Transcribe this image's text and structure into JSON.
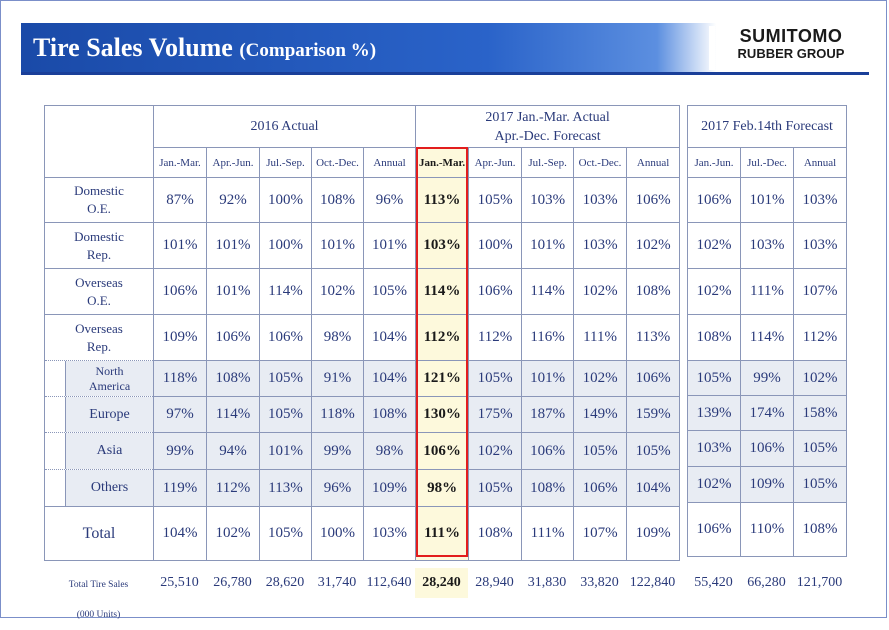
{
  "title": "Tire Sales Volume",
  "subtitle": "(Comparison %)",
  "logo": {
    "line1": "SUMITOMO",
    "line2": "RUBBER GROUP"
  },
  "groups": {
    "g2016": "2016 Actual",
    "g2017a_l1": "2017 Jan.-Mar. Actual",
    "g2017a_l2": "Apr.-Dec. Forecast",
    "g2017f": "2017 Feb.14th Forecast"
  },
  "periods_main": [
    "Jan.-Mar.",
    "Apr.-Jun.",
    "Jul.-Sep.",
    "Oct.-Dec.",
    "Annual",
    "Jan.-Mar.",
    "Apr.-Jun.",
    "Jul.-Sep.",
    "Oct.-Dec.",
    "Annual"
  ],
  "periods_fc": [
    "Jan.-Jun.",
    "Jul.-Dec.",
    "Annual"
  ],
  "rows": [
    {
      "l1": "Domestic",
      "l2": "O.E.",
      "main": [
        "87%",
        "92%",
        "100%",
        "108%",
        "96%",
        "113%",
        "105%",
        "103%",
        "103%",
        "106%"
      ],
      "fc": [
        "106%",
        "101%",
        "103%"
      ]
    },
    {
      "l1": "Domestic",
      "l2": "Rep.",
      "main": [
        "101%",
        "101%",
        "100%",
        "101%",
        "101%",
        "103%",
        "100%",
        "101%",
        "103%",
        "102%"
      ],
      "fc": [
        "102%",
        "103%",
        "103%"
      ]
    },
    {
      "l1": "Overseas",
      "l2": "O.E.",
      "main": [
        "106%",
        "101%",
        "114%",
        "102%",
        "105%",
        "114%",
        "106%",
        "114%",
        "102%",
        "108%"
      ],
      "fc": [
        "102%",
        "111%",
        "107%"
      ]
    },
    {
      "l1": "Overseas",
      "l2": "Rep.",
      "main": [
        "109%",
        "106%",
        "106%",
        "98%",
        "104%",
        "112%",
        "112%",
        "116%",
        "111%",
        "113%"
      ],
      "fc": [
        "108%",
        "114%",
        "112%"
      ]
    },
    {
      "l1": "North",
      "l2": "America",
      "main": [
        "118%",
        "108%",
        "105%",
        "91%",
        "104%",
        "121%",
        "105%",
        "101%",
        "102%",
        "106%"
      ],
      "fc": [
        "105%",
        "99%",
        "102%"
      ]
    },
    {
      "l1": "Europe",
      "main": [
        "97%",
        "114%",
        "105%",
        "118%",
        "108%",
        "130%",
        "175%",
        "187%",
        "149%",
        "159%"
      ],
      "fc": [
        "139%",
        "174%",
        "158%"
      ]
    },
    {
      "l1": "Asia",
      "main": [
        "99%",
        "94%",
        "101%",
        "99%",
        "98%",
        "106%",
        "102%",
        "106%",
        "105%",
        "105%"
      ],
      "fc": [
        "103%",
        "106%",
        "105%"
      ]
    },
    {
      "l1": "Others",
      "main": [
        "119%",
        "112%",
        "113%",
        "96%",
        "109%",
        "98%",
        "105%",
        "108%",
        "106%",
        "104%"
      ],
      "fc": [
        "102%",
        "109%",
        "105%"
      ]
    },
    {
      "l1": "Total",
      "main": [
        "104%",
        "102%",
        "105%",
        "100%",
        "103%",
        "111%",
        "108%",
        "111%",
        "107%",
        "109%"
      ],
      "fc": [
        "106%",
        "110%",
        "108%"
      ]
    }
  ],
  "bottom": {
    "label_l1": "Total Tire Sales",
    "label_l2": "(000 Units)",
    "main": [
      "25,510",
      "26,780",
      "28,620",
      "31,740",
      "112,640",
      "28,240",
      "28,940",
      "31,830",
      "33,820",
      "122,840"
    ],
    "fc": [
      "55,420",
      "66,280",
      "121,700"
    ]
  }
}
